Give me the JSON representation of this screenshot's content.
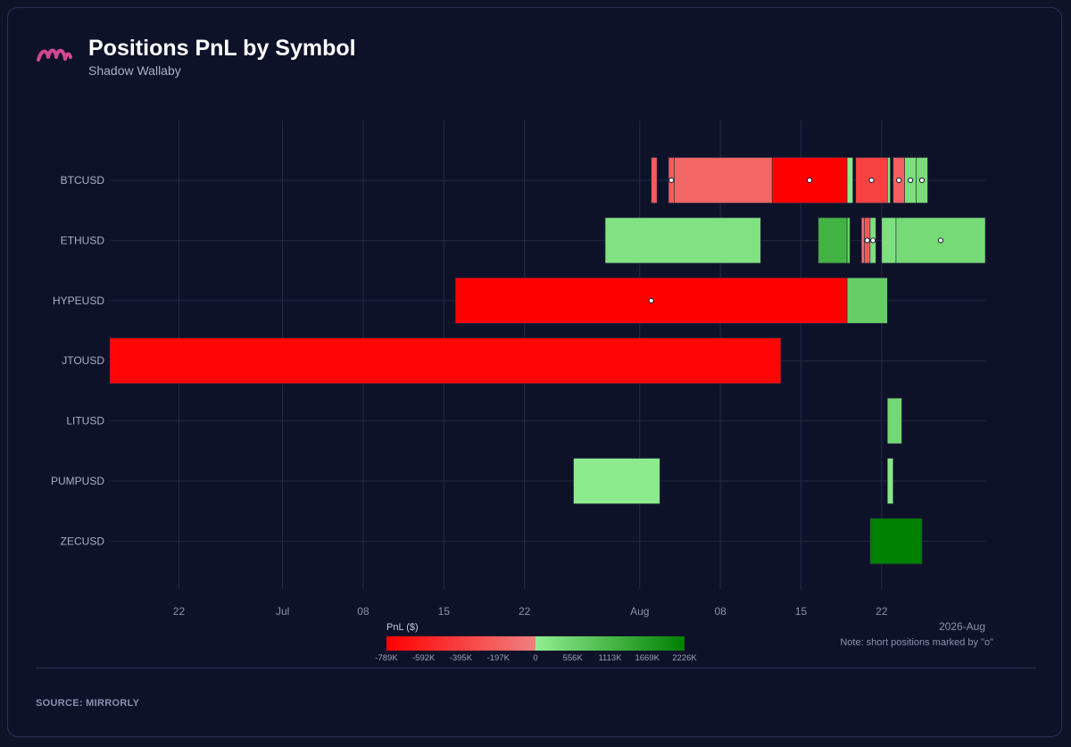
{
  "header": {
    "title": "Positions PnL by Symbol",
    "subtitle": "Shadow Wallaby",
    "logo_icon": "mirrorly-logo"
  },
  "footer": {
    "source": "SOURCE: MIRRORLY"
  },
  "colors": {
    "background": "#0e1229",
    "grid": "#232a45",
    "loss": "#ff0000",
    "loss_light": "#f08080",
    "gain_light": "#90ee90",
    "gain": "#008000",
    "marker_fill": "#ffffff",
    "marker_stroke": "#1a1a2e"
  },
  "chart_data": {
    "type": "timeline",
    "title": "Positions PnL by Symbol",
    "subtitle": "Shadow Wallaby",
    "x_axis": {
      "type": "date",
      "range": [
        "2026-06-16",
        "2026-08-31"
      ],
      "ticks": [
        {
          "date": "2026-06-22",
          "label": "22"
        },
        {
          "date": "2026-07-01",
          "label": "Jul"
        },
        {
          "date": "2026-07-08",
          "label": "08"
        },
        {
          "date": "2026-07-15",
          "label": "15"
        },
        {
          "date": "2026-07-22",
          "label": "22"
        },
        {
          "date": "2026-08-01",
          "label": "Aug"
        },
        {
          "date": "2026-08-08",
          "label": "08"
        },
        {
          "date": "2026-08-15",
          "label": "15"
        },
        {
          "date": "2026-08-22",
          "label": "22"
        }
      ],
      "corner_label": "2026-Aug"
    },
    "categories": [
      "BTCUSD",
      "ETHUSD",
      "HYPEUSD",
      "JTOUSD",
      "LITUSD",
      "PUMPUSD",
      "ZECUSD"
    ],
    "grid": true,
    "positions": [
      {
        "symbol": "BTCUSD",
        "start": "2026-08-02 00:00",
        "end": "2026-08-02 12:00",
        "pnl": -230000,
        "short": false
      },
      {
        "symbol": "BTCUSD",
        "start": "2026-08-03 12:00",
        "end": "2026-08-04 00:00",
        "pnl": -230000,
        "short": true
      },
      {
        "symbol": "BTCUSD",
        "start": "2026-08-04 00:00",
        "end": "2026-08-12 12:00",
        "pnl": -160000,
        "short": false
      },
      {
        "symbol": "BTCUSD",
        "start": "2026-08-12 12:00",
        "end": "2026-08-19 00:00",
        "pnl": -790000,
        "short": true
      },
      {
        "symbol": "BTCUSD",
        "start": "2026-08-19 00:00",
        "end": "2026-08-19 12:00",
        "pnl": 100000,
        "short": false
      },
      {
        "symbol": "BTCUSD",
        "start": "2026-08-19 18:00",
        "end": "2026-08-22 12:00",
        "pnl": -380000,
        "short": true
      },
      {
        "symbol": "BTCUSD",
        "start": "2026-08-22 12:00",
        "end": "2026-08-22 18:00",
        "pnl": 200000,
        "short": false
      },
      {
        "symbol": "BTCUSD",
        "start": "2026-08-23 00:00",
        "end": "2026-08-24 00:00",
        "pnl": -200000,
        "short": true
      },
      {
        "symbol": "BTCUSD",
        "start": "2026-08-24 00:00",
        "end": "2026-08-25 00:00",
        "pnl": 300000,
        "short": true
      },
      {
        "symbol": "BTCUSD",
        "start": "2026-08-25 00:00",
        "end": "2026-08-26 00:00",
        "pnl": 350000,
        "short": true
      },
      {
        "symbol": "ETHUSD",
        "start": "2026-07-29 00:00",
        "end": "2026-08-11 12:00",
        "pnl": 250000,
        "short": false
      },
      {
        "symbol": "ETHUSD",
        "start": "2026-08-16 12:00",
        "end": "2026-08-19 00:00",
        "pnl": 1200000,
        "short": false
      },
      {
        "symbol": "ETHUSD",
        "start": "2026-08-19 00:00",
        "end": "2026-08-19 06:00",
        "pnl": 600000,
        "short": false
      },
      {
        "symbol": "ETHUSD",
        "start": "2026-08-20 06:00",
        "end": "2026-08-20 12:00",
        "pnl": -150000,
        "short": false
      },
      {
        "symbol": "ETHUSD",
        "start": "2026-08-20 12:00",
        "end": "2026-08-21 00:00",
        "pnl": -250000,
        "short": true
      },
      {
        "symbol": "ETHUSD",
        "start": "2026-08-21 00:00",
        "end": "2026-08-21 12:00",
        "pnl": 300000,
        "short": true
      },
      {
        "symbol": "ETHUSD",
        "start": "2026-08-22 00:00",
        "end": "2026-08-23 06:00",
        "pnl": 300000,
        "short": false
      },
      {
        "symbol": "ETHUSD",
        "start": "2026-08-23 06:00",
        "end": "2026-08-31 00:00",
        "pnl": 400000,
        "short": true
      },
      {
        "symbol": "HYPEUSD",
        "start": "2026-07-16 00:00",
        "end": "2026-08-19 00:00",
        "pnl": -789000,
        "short": true
      },
      {
        "symbol": "HYPEUSD",
        "start": "2026-08-19 00:00",
        "end": "2026-08-22 12:00",
        "pnl": 650000,
        "short": false
      },
      {
        "symbol": "JTOUSD",
        "start": "2026-06-16 00:00",
        "end": "2026-08-13 06:00",
        "pnl": -750000,
        "short": false
      },
      {
        "symbol": "LITUSD",
        "start": "2026-08-22 12:00",
        "end": "2026-08-23 18:00",
        "pnl": 450000,
        "short": false
      },
      {
        "symbol": "PUMPUSD",
        "start": "2026-07-26 06:00",
        "end": "2026-08-02 18:00",
        "pnl": 80000,
        "short": false
      },
      {
        "symbol": "PUMPUSD",
        "start": "2026-08-22 12:00",
        "end": "2026-08-23 00:00",
        "pnl": 150000,
        "short": false
      },
      {
        "symbol": "ZECUSD",
        "start": "2026-08-21 00:00",
        "end": "2026-08-25 12:00",
        "pnl": 2226000,
        "short": false
      }
    ],
    "colorbar": {
      "title": "PnL ($)",
      "min": -789000,
      "max": 2226000,
      "ticks": [
        {
          "value": -789000,
          "label": "-789K"
        },
        {
          "value": -592000,
          "label": "-592K"
        },
        {
          "value": -395000,
          "label": "-395K"
        },
        {
          "value": -197000,
          "label": "-197K"
        },
        {
          "value": 0,
          "label": "0"
        },
        {
          "value": 556000,
          "label": "556K"
        },
        {
          "value": 1113000,
          "label": "1113K"
        },
        {
          "value": 1669000,
          "label": "1669K"
        },
        {
          "value": 2226000,
          "label": "2226K"
        }
      ]
    },
    "note": "Note: short positions marked by \"o\""
  }
}
